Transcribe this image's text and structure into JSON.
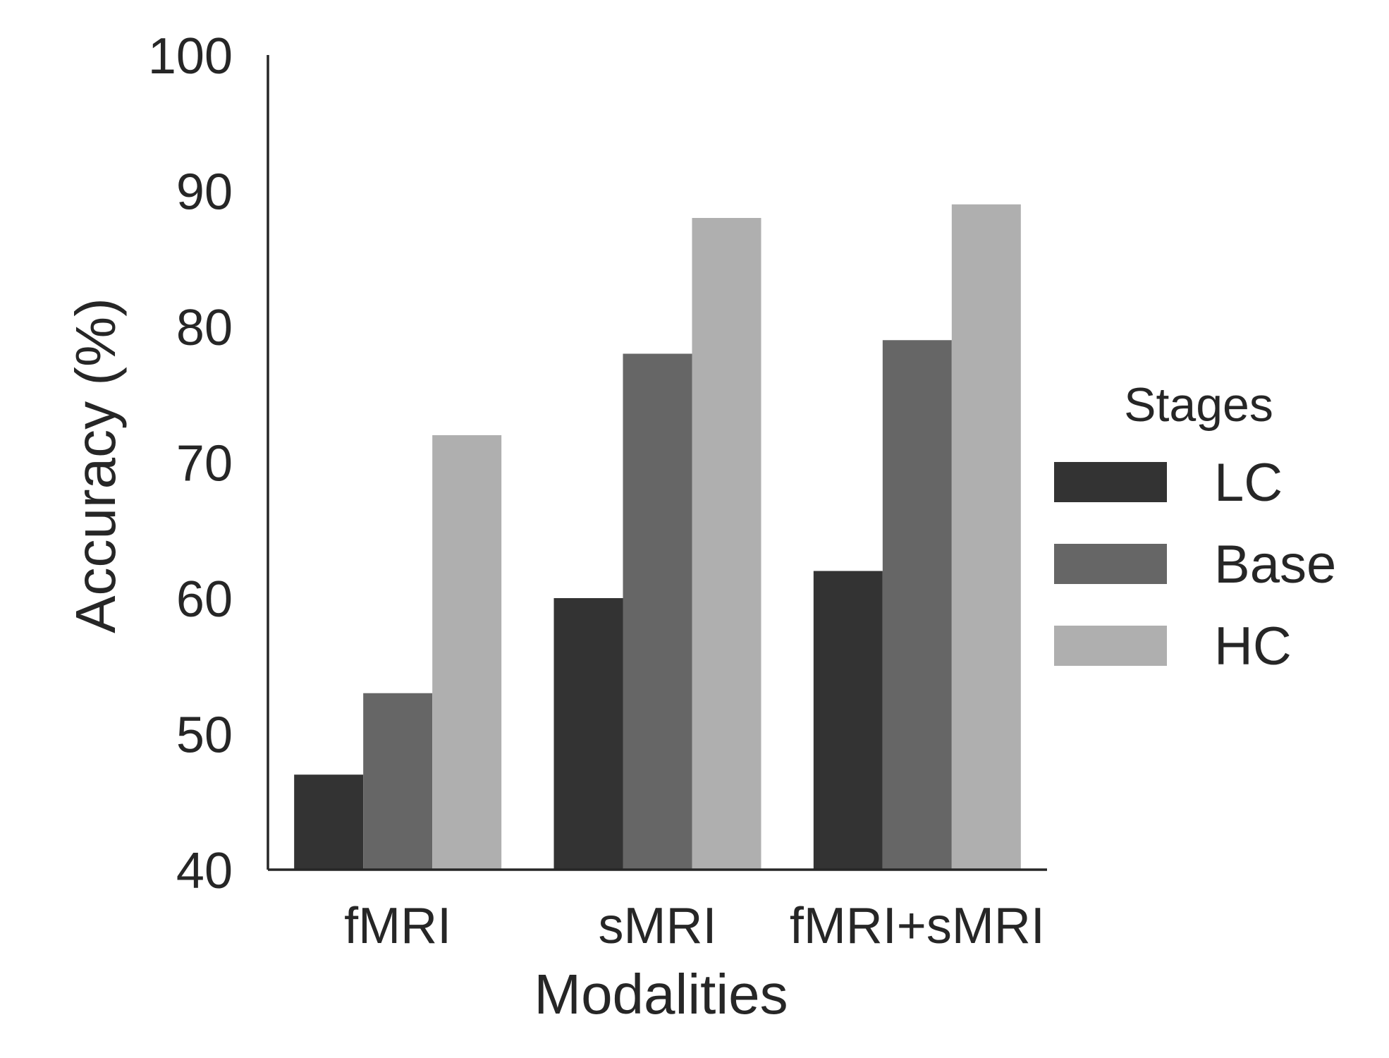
{
  "chart_data": {
    "type": "bar",
    "xlabel": "Modalities",
    "ylabel": "Accuracy (%)",
    "ylim": [
      40,
      100
    ],
    "yticks": [
      "40",
      "50",
      "60",
      "70",
      "80",
      "90",
      "100"
    ],
    "categories": [
      "fMRI",
      "sMRI",
      "fMRI+sMRI"
    ],
    "series": [
      {
        "name": "LC",
        "color": "#333333",
        "values": [
          47,
          60,
          62
        ]
      },
      {
        "name": "Base",
        "color": "#666666",
        "values": [
          53,
          78,
          79
        ]
      },
      {
        "name": "HC",
        "color": "#afafaf",
        "values": [
          72,
          88,
          89
        ]
      }
    ],
    "legend": {
      "title": "Stages",
      "placement": "center-right"
    },
    "grid": false
  }
}
